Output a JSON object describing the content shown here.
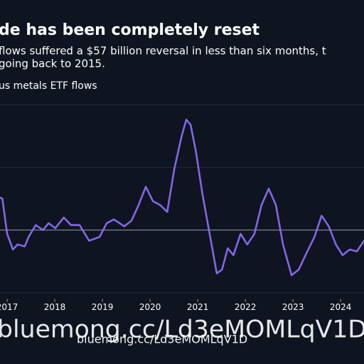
{
  "chart_data": {
    "type": "line",
    "title": "de has been completely reset",
    "subtitle_lines": [
      "flows suffered a $57 billion reversal in less than six months, t",
      "going back to 2015."
    ],
    "series": [
      {
        "name": "us metals ETF flows",
        "color": "#8566e6",
        "x": [
          2016.85,
          2016.9,
          2017.0,
          2017.12,
          2017.22,
          2017.37,
          2017.45,
          2017.6,
          2017.75,
          2017.87,
          2018.01,
          2018.19,
          2018.34,
          2018.52,
          2018.72,
          2018.94,
          2019.09,
          2019.24,
          2019.46,
          2019.61,
          2019.76,
          2019.91,
          2020.06,
          2020.21,
          2020.36,
          2020.51,
          2020.66,
          2020.76,
          2020.85,
          2020.96,
          2021.1,
          2021.25,
          2021.4,
          2021.51,
          2021.63,
          2021.75,
          2021.9,
          2022.04,
          2022.19,
          2022.34,
          2022.49,
          2022.64,
          2022.79,
          2022.97,
          2023.12,
          2023.3,
          2023.45,
          2023.6,
          2023.75,
          2023.9,
          2024.04,
          2024.19,
          2024.34,
          2024.49
        ],
        "values": [
          5.2,
          5,
          -0.6,
          -3.1,
          -2.3,
          -2.6,
          -1.1,
          0.8,
          0,
          1.1,
          0.3,
          2,
          0.8,
          0.8,
          -1.7,
          -1.1,
          1.1,
          1.7,
          0.6,
          1.5,
          4,
          6.9,
          4.6,
          4,
          2.9,
          9.8,
          14.9,
          17.6,
          16.8,
          12.6,
          5.7,
          -0.6,
          -6.9,
          -6.3,
          -2.9,
          -4,
          -0.6,
          -2.3,
          -0.6,
          4,
          6.6,
          4,
          -2.3,
          -7.2,
          -6.3,
          -3.4,
          -1.1,
          2.3,
          0.6,
          -2.3,
          -4,
          -3.1,
          -3.4,
          -1.7
        ]
      }
    ],
    "xlim": [
      2016.85,
      2024.49
    ],
    "xticks": [
      2017,
      2018,
      2019,
      2020,
      2021,
      2022,
      2023,
      2024
    ],
    "ylim": [
      -11,
      21
    ],
    "yticks": [
      -10,
      10,
      20
    ],
    "show_ytick_labels": false,
    "grid": true,
    "zero_line": true
  },
  "watermark": {
    "large": "bluemong.cc/Ld3eMOMLqV1D",
    "small": "bluemong.cc/Ld3eMOMLqV1D"
  }
}
